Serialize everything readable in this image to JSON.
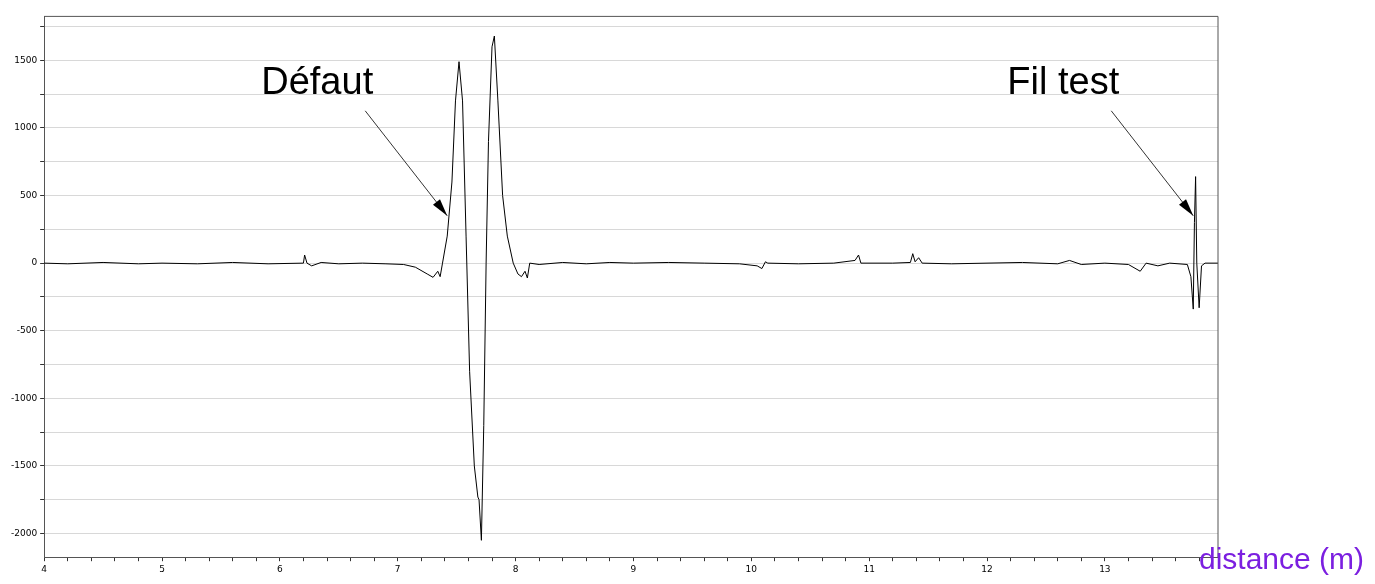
{
  "chart_data": {
    "type": "line",
    "xlabel": "distance (m)",
    "xlim": [
      4,
      13.96
    ],
    "xticks": [
      4,
      {
        "value": 4.2,
        "label": null
      },
      {
        "value": 4.4,
        "label": null
      },
      {
        "value": 4.6,
        "label": null
      },
      {
        "value": 4.8,
        "label": null
      },
      5,
      {
        "value": 5.2,
        "label": null
      },
      {
        "value": 5.4,
        "label": null
      },
      {
        "value": 5.6,
        "label": null
      },
      {
        "value": 5.8,
        "label": null
      },
      6,
      {
        "value": 6.2,
        "label": null
      },
      {
        "value": 6.4,
        "label": null
      },
      {
        "value": 6.6,
        "label": null
      },
      {
        "value": 6.8,
        "label": null
      },
      7,
      {
        "value": 7.2,
        "label": null
      },
      {
        "value": 7.4,
        "label": null
      },
      {
        "value": 7.6,
        "label": null
      },
      {
        "value": 7.8,
        "label": null
      },
      8,
      {
        "value": 8.2,
        "label": null
      },
      {
        "value": 8.4,
        "label": null
      },
      {
        "value": 8.6,
        "label": null
      },
      {
        "value": 8.8,
        "label": null
      },
      9,
      {
        "value": 9.2,
        "label": null
      },
      {
        "value": 9.4,
        "label": null
      },
      {
        "value": 9.6,
        "label": null
      },
      {
        "value": 9.8,
        "label": null
      },
      10,
      {
        "value": 10.2,
        "label": null
      },
      {
        "value": 10.4,
        "label": null
      },
      {
        "value": 10.6,
        "label": null
      },
      {
        "value": 10.8,
        "label": null
      },
      11,
      {
        "value": 11.2,
        "label": null
      },
      {
        "value": 11.4,
        "label": null
      },
      {
        "value": 11.6,
        "label": null
      },
      {
        "value": 11.8,
        "label": null
      },
      12,
      {
        "value": 12.2,
        "label": null
      },
      {
        "value": 12.4,
        "label": null
      },
      {
        "value": 12.6,
        "label": null
      },
      {
        "value": 12.8,
        "label": null
      },
      13,
      {
        "value": 13.2,
        "label": null
      },
      {
        "value": 13.4,
        "label": null
      },
      {
        "value": 13.6,
        "label": null
      },
      {
        "value": 13.8,
        "label": null
      }
    ],
    "ylim": [
      -2175,
      1825
    ],
    "yticks": [
      -2000,
      {
        "value": -1750,
        "label": null
      },
      -1500,
      {
        "value": -1250,
        "label": null
      },
      -1000,
      {
        "value": -750,
        "label": null
      },
      -500,
      {
        "value": -250,
        "label": null
      },
      0,
      {
        "value": 250,
        "label": null
      },
      500,
      {
        "value": 750,
        "label": null
      },
      1000,
      {
        "value": 1250,
        "label": null
      },
      1500,
      {
        "value": 1750,
        "label": null
      }
    ],
    "grid": "y",
    "legend": false,
    "marker": "none",
    "line_style": "solid",
    "series": [
      {
        "color": "#000000",
        "x": [
          4.0,
          4.2,
          4.5,
          4.8,
          5.0,
          5.3,
          5.6,
          5.9,
          6.2,
          6.21,
          6.23,
          6.27,
          6.35,
          6.5,
          6.7,
          6.9,
          7.05,
          7.15,
          7.25,
          7.3,
          7.34,
          7.36,
          7.38,
          7.42,
          7.46,
          7.49,
          7.52,
          7.55,
          7.58,
          7.61,
          7.65,
          7.68,
          7.69,
          7.71,
          7.73,
          7.75,
          7.77,
          7.8,
          7.82,
          7.85,
          7.89,
          7.93,
          7.98,
          8.02,
          8.05,
          8.08,
          8.1,
          8.12,
          8.2,
          8.4,
          8.6,
          8.8,
          9.0,
          9.3,
          9.6,
          9.9,
          10.05,
          10.09,
          10.12,
          10.14,
          10.4,
          10.7,
          10.88,
          10.91,
          10.93,
          11.2,
          11.35,
          11.37,
          11.39,
          11.42,
          11.45,
          11.7,
          12.0,
          12.3,
          12.6,
          12.7,
          12.8,
          13.0,
          13.2,
          13.3,
          13.35,
          13.45,
          13.55,
          13.7,
          13.73,
          13.75,
          13.76,
          13.77,
          13.78,
          13.8,
          13.82,
          13.85,
          13.96
        ],
        "values": [
          0,
          -5,
          5,
          -5,
          0,
          -5,
          5,
          -5,
          0,
          60,
          0,
          -20,
          5,
          -5,
          0,
          -5,
          -10,
          -30,
          -80,
          -105,
          -60,
          -100,
          0,
          200,
          600,
          1200,
          1490,
          1200,
          200,
          -800,
          -1500,
          -1730,
          -1750,
          -2050,
          -1200,
          0,
          900,
          1600,
          1680,
          1200,
          500,
          200,
          0,
          -80,
          -100,
          -60,
          -110,
          0,
          -10,
          5,
          -5,
          5,
          0,
          5,
          0,
          -5,
          -20,
          -40,
          10,
          0,
          -5,
          0,
          20,
          60,
          0,
          0,
          5,
          70,
          10,
          40,
          0,
          -5,
          0,
          5,
          -5,
          20,
          -10,
          0,
          -10,
          -60,
          0,
          -20,
          0,
          -10,
          -100,
          -340,
          300,
          640,
          0,
          -330,
          -20,
          0,
          0
        ]
      }
    ],
    "annotations": [
      {
        "text": "Défaut",
        "x": 7.42,
        "y": 350
      },
      {
        "text": "Fil test",
        "x": 13.75,
        "y": 350
      }
    ]
  }
}
